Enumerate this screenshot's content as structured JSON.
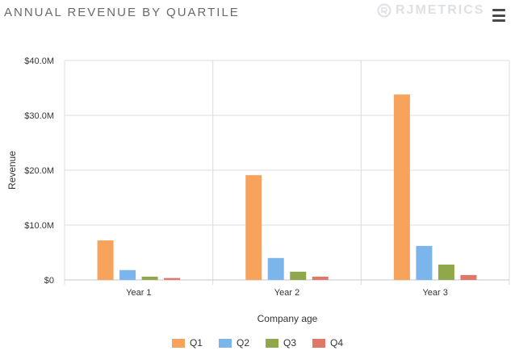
{
  "header": {
    "title": "ANNUAL REVENUE BY QUARTILE",
    "logo_text": "RJMETRICS",
    "menu_icon": "hamburger-menu-icon"
  },
  "colors": {
    "Q1": "#f7a35c",
    "Q2": "#7cb5ec",
    "Q3": "#90a84a",
    "Q4": "#e0786a",
    "grid": "#d8dde2",
    "axis_text": "#333333"
  },
  "chart_data": {
    "type": "bar",
    "title": "ANNUAL REVENUE BY QUARTILE",
    "xlabel": "Company age",
    "ylabel": "Revenue",
    "categories": [
      "Year 1",
      "Year 2",
      "Year 3"
    ],
    "ylim": [
      0,
      40
    ],
    "yticks": [
      0,
      10,
      20,
      30,
      40
    ],
    "ytick_labels": [
      "$0",
      "$10.0M",
      "$20.0M",
      "$30.0M",
      "$40.0M"
    ],
    "grid": true,
    "legend_position": "bottom-center",
    "series": [
      {
        "name": "Q1",
        "values": [
          7.2,
          19.1,
          33.8
        ]
      },
      {
        "name": "Q2",
        "values": [
          1.8,
          4.0,
          6.2
        ]
      },
      {
        "name": "Q3",
        "values": [
          0.6,
          1.5,
          2.8
        ]
      },
      {
        "name": "Q4",
        "values": [
          0.35,
          0.6,
          0.9
        ]
      }
    ]
  }
}
